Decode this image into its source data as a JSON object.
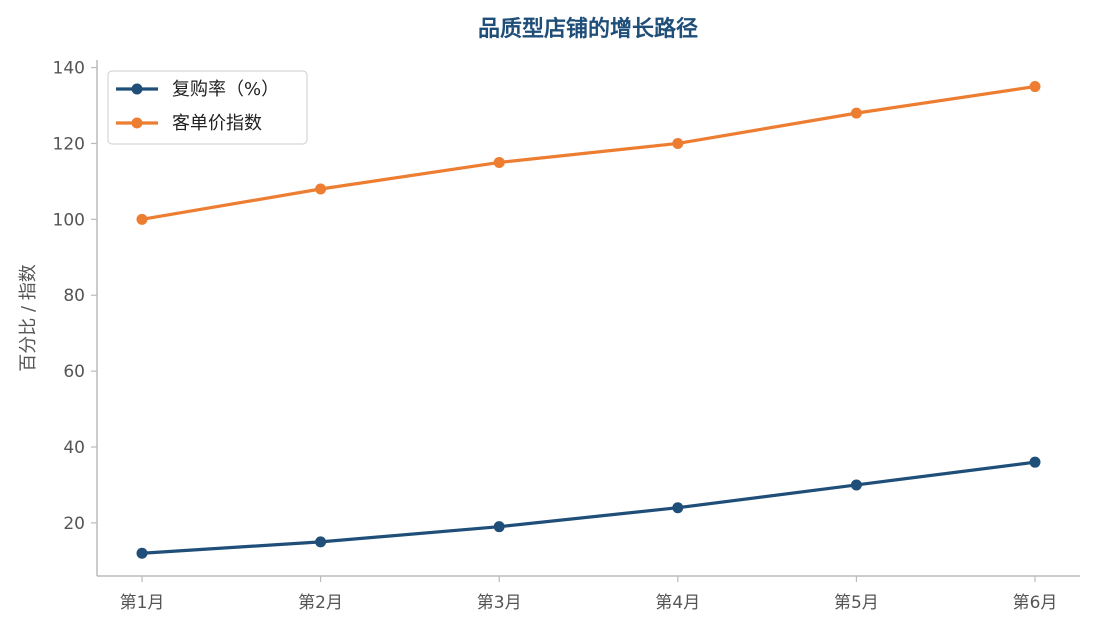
{
  "chart_data": {
    "type": "line",
    "title": "品质型店铺的增长路径",
    "xlabel": "",
    "ylabel": "百分比 / 指数",
    "categories": [
      "第1月",
      "第2月",
      "第3月",
      "第4月",
      "第5月",
      "第6月"
    ],
    "series": [
      {
        "name": "复购率（%）",
        "values": [
          12,
          15,
          19,
          24,
          30,
          36
        ],
        "color": "#1f4e79"
      },
      {
        "name": "客单价指数",
        "values": [
          100,
          108,
          115,
          120,
          128,
          135
        ],
        "color": "#ed7d31"
      }
    ],
    "ylim": [
      6,
      142
    ],
    "yticks": [
      20,
      40,
      60,
      80,
      100,
      120,
      140
    ],
    "grid": false,
    "legend_position": "top-left",
    "title_color": "#1f4e79",
    "axis_color": "#bbbbbb"
  }
}
